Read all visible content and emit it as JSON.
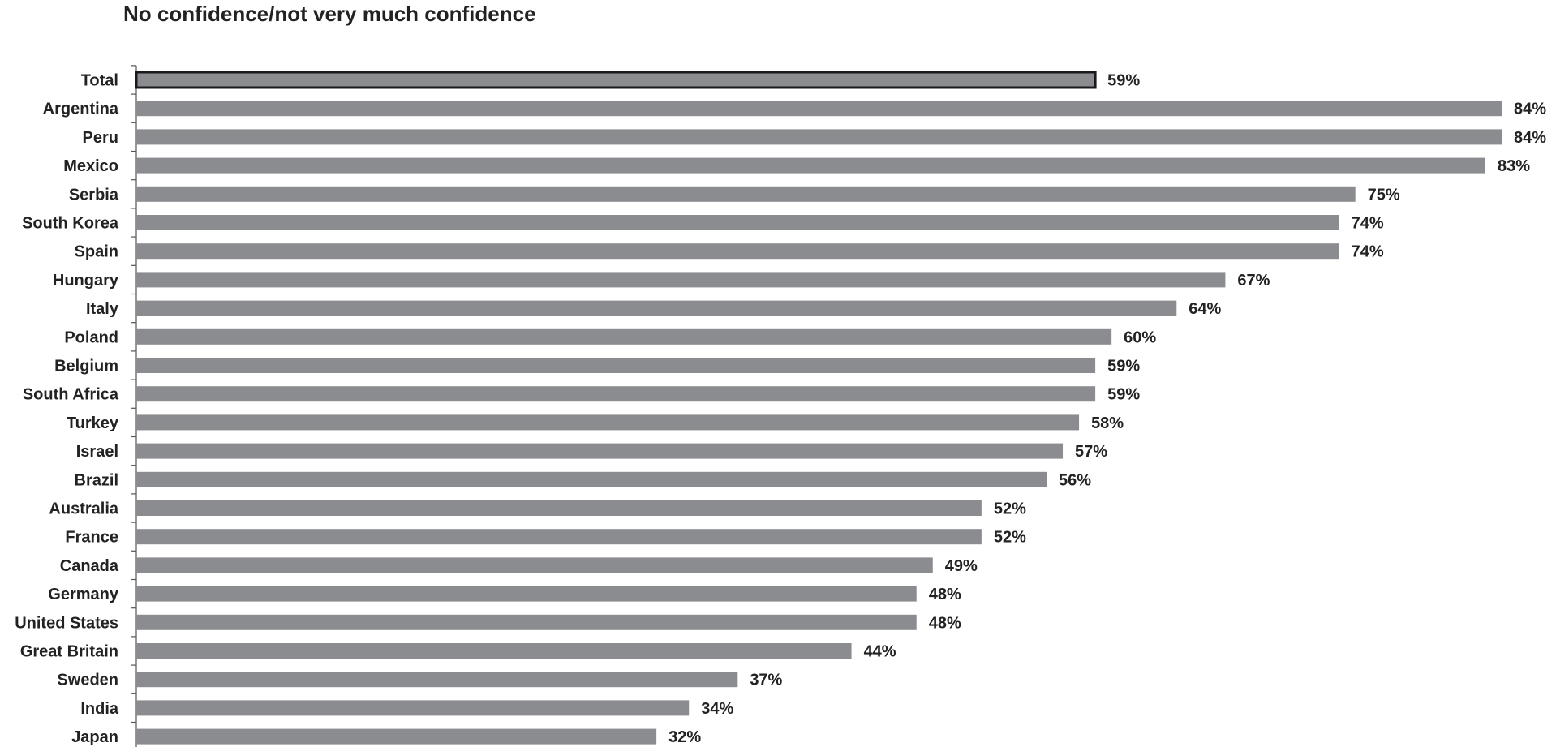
{
  "chart_data": {
    "type": "bar",
    "orientation": "horizontal",
    "title": "No confidence/not very much confidence",
    "categories": [
      "Total",
      "Argentina",
      "Peru",
      "Mexico",
      "Serbia",
      "South Korea",
      "Spain",
      "Hungary",
      "Italy",
      "Poland",
      "Belgium",
      "South Africa",
      "Turkey",
      "Israel",
      "Brazil",
      "Australia",
      "France",
      "Canada",
      "Germany",
      "United States",
      "Great Britain",
      "Sweden",
      "India",
      "Japan"
    ],
    "values": [
      59,
      84,
      84,
      83,
      75,
      74,
      74,
      67,
      64,
      60,
      59,
      59,
      58,
      57,
      56,
      52,
      52,
      49,
      48,
      48,
      44,
      37,
      34,
      32
    ],
    "value_labels": [
      "59%",
      "84%",
      "84%",
      "83%",
      "75%",
      "74%",
      "74%",
      "67%",
      "64%",
      "60%",
      "59%",
      "59%",
      "58%",
      "57%",
      "56%",
      "52%",
      "52%",
      "49%",
      "48%",
      "48%",
      "44%",
      "37%",
      "34%",
      "32%"
    ],
    "highlighted_category": "Total",
    "xlim": [
      0,
      84
    ],
    "grid": false,
    "legend": "none",
    "colors": {
      "bar": "#8a8c8f",
      "highlight_bar": "#8a8c8f",
      "highlight_border": "#1a1a1a",
      "axis": "#555555"
    }
  }
}
